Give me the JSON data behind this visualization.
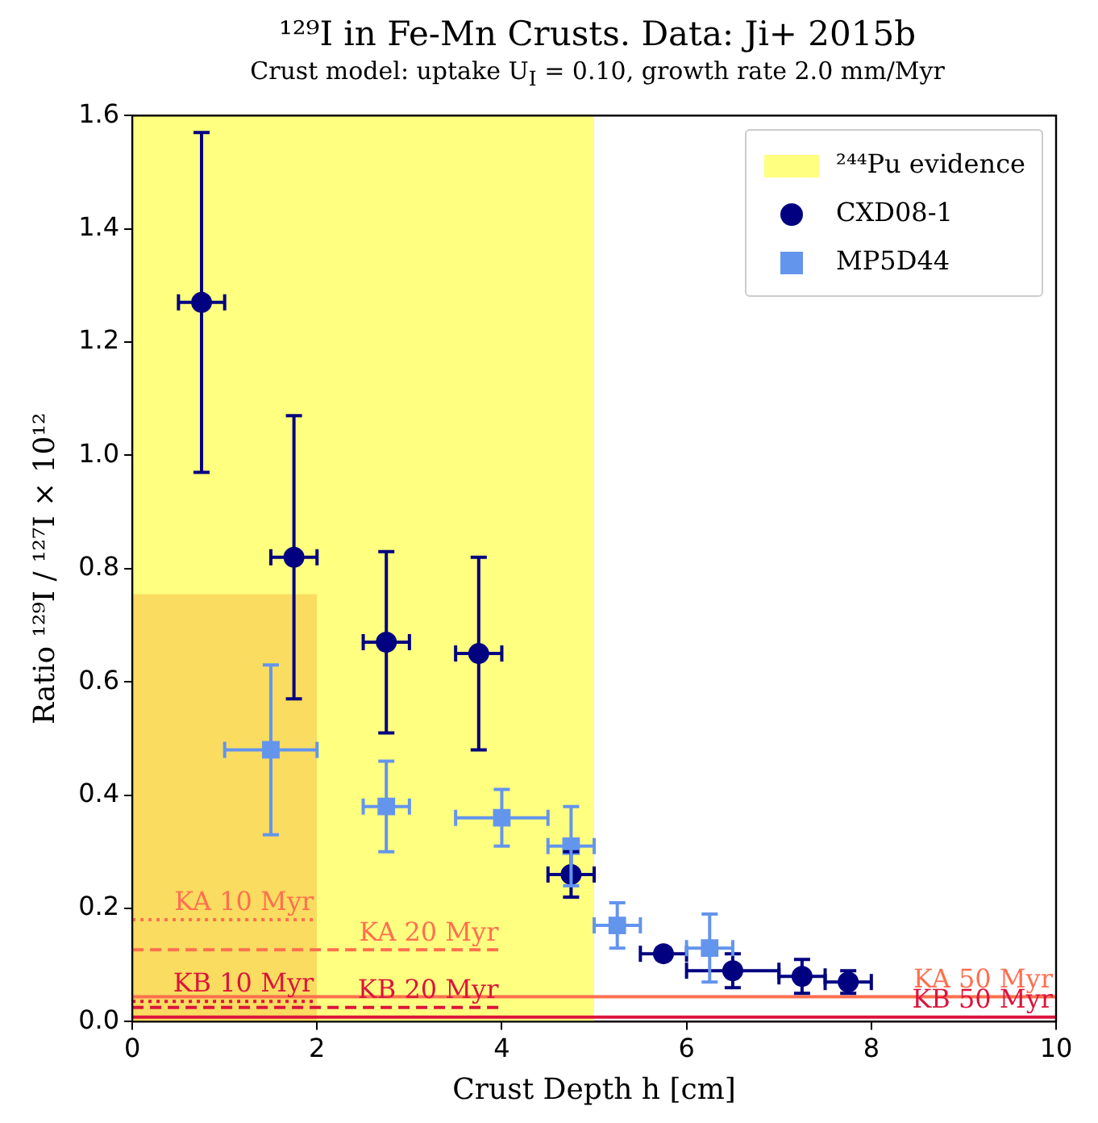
{
  "chart_data": {
    "type": "scatter",
    "title": "¹²⁹I in Fe-Mn Crusts. Data: Ji+ 2015b",
    "subtitle": "Crust model: uptake U$_{I}$ = 0.10, growth rate 2.0 mm/Myr",
    "xlabel": "Crust Depth h [cm]",
    "ylabel": "Ratio ¹²⁹I / ¹²⁷I × 10¹²",
    "xlim": [
      0,
      10
    ],
    "xticks": [
      0,
      2,
      4,
      6,
      8,
      10
    ],
    "ylim": [
      0,
      1.6
    ],
    "yticks": [
      {
        "value": 0,
        "label": "0.0"
      },
      {
        "value": 0.2,
        "label": "0.2"
      },
      {
        "value": 0.4,
        "label": "0.4"
      },
      {
        "value": 0.6,
        "label": "0.6"
      },
      {
        "value": 0.8,
        "label": "0.8"
      },
      {
        "value": 1.0,
        "label": "1.0"
      },
      {
        "value": 1.2,
        "label": "1.2"
      },
      {
        "value": 1.4,
        "label": "1.4"
      },
      {
        "value": 1.6,
        "label": "1.6"
      }
    ],
    "grid": false,
    "legend": "top right",
    "series": [
      {
        "type": "area",
        "name": "²⁴⁴Pu evidence",
        "color": "#ffff80",
        "x": [
          0,
          5
        ],
        "values": [
          1.6,
          1.6
        ]
      },
      {
        "type": "area",
        "color": "#f9dc60",
        "x": [
          0,
          2
        ],
        "values": [
          0.755,
          0.755
        ]
      },
      {
        "type": "line",
        "name": "KA 10 Myr",
        "color": "#ff6f4f",
        "line_style": "dotted",
        "x": [
          0,
          2
        ],
        "values": [
          0.18,
          0.18
        ]
      },
      {
        "type": "line",
        "name": "KA 20 Myr",
        "color": "#ff6f4f",
        "line_style": "dashed",
        "x": [
          0,
          4
        ],
        "values": [
          0.127,
          0.127
        ]
      },
      {
        "type": "line",
        "name": "KB 10 Myr",
        "color": "#dc143c",
        "line_style": "dotted",
        "x": [
          0,
          2
        ],
        "values": [
          0.036,
          0.036
        ]
      },
      {
        "type": "line",
        "name": "KB 20 Myr",
        "color": "#dc143c",
        "line_style": "dashed",
        "x": [
          0,
          4
        ],
        "values": [
          0.025,
          0.025
        ]
      },
      {
        "type": "line",
        "name": "KA 50 Myr",
        "color": "#ff6f4f",
        "line_style": "solid",
        "x": [
          0,
          10
        ],
        "values": [
          0.044,
          0.044
        ]
      },
      {
        "type": "line",
        "name": "KB 50 Myr",
        "color": "#dc143c",
        "line_style": "solid",
        "x": [
          0,
          10
        ],
        "values": [
          0.008,
          0.008
        ]
      },
      {
        "name": "CXD08-1",
        "color": "#000080",
        "marker": "circle",
        "x": [
          0.75,
          1.75,
          2.75,
          3.75,
          4.75,
          5.75,
          6.5,
          7.25,
          7.75
        ],
        "values": [
          1.27,
          0.82,
          0.67,
          0.65,
          0.26,
          0.12,
          0.09,
          0.08,
          0.07
        ],
        "errors": [
          0.3,
          0.25,
          0.16,
          0.17,
          0.04,
          0.01,
          0.03,
          0.03,
          0.02
        ],
        "xerrors": [
          0.25,
          0.25,
          0.25,
          0.25,
          0.25,
          0.25,
          0.5,
          0.25,
          0.25
        ]
      },
      {
        "name": "MP5D44",
        "color": "#6495ed",
        "marker": "square",
        "x": [
          1.5,
          2.75,
          4.0,
          4.75,
          5.25,
          6.25
        ],
        "values": [
          0.48,
          0.38,
          0.36,
          0.31,
          0.17,
          0.13
        ],
        "errors": [
          0.15,
          0.08,
          0.05,
          0.07,
          0.04,
          0.06
        ],
        "xerrors": [
          0.5,
          0.25,
          0.5,
          0.25,
          0.25,
          0.25
        ]
      }
    ]
  }
}
